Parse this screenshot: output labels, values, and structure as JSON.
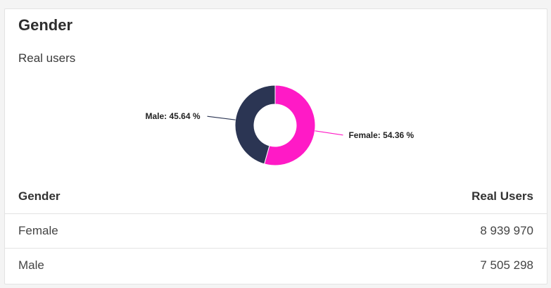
{
  "card": {
    "title": "Gender",
    "subtitle": "Real users"
  },
  "chart_data": {
    "type": "pie",
    "donut": true,
    "title": "Gender",
    "subtitle": "Real users",
    "slices": [
      {
        "name": "Female",
        "value": 54.36,
        "color": "#ff1ac6",
        "label": "Female: 54.36 %"
      },
      {
        "name": "Male",
        "value": 45.64,
        "color": "#2b3553",
        "label": "Male: 45.64 %"
      }
    ]
  },
  "table": {
    "headers": [
      "Gender",
      "Real Users"
    ],
    "rows": [
      [
        "Female",
        "8 939 970"
      ],
      [
        "Male",
        "7 505 298"
      ]
    ]
  }
}
